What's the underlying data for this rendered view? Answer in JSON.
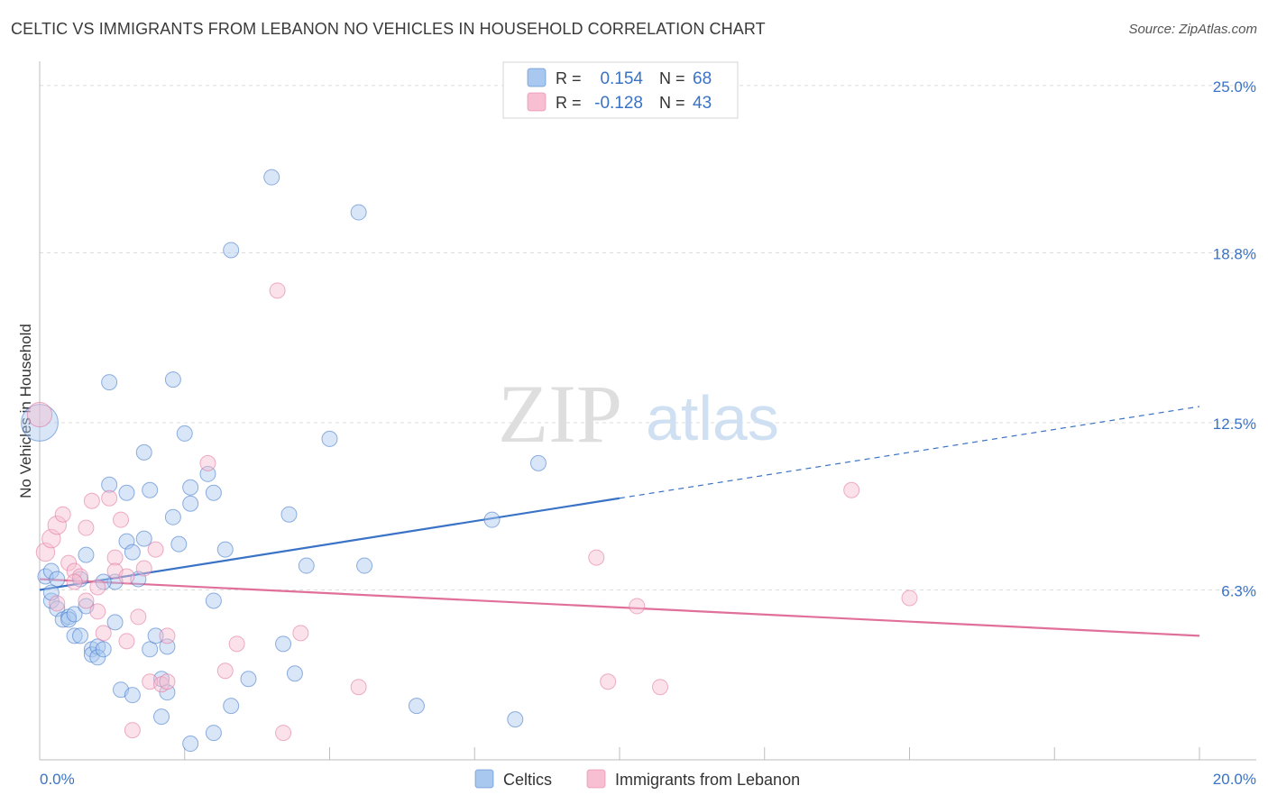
{
  "title": "CELTIC VS IMMIGRANTS FROM LEBANON NO VEHICLES IN HOUSEHOLD CORRELATION CHART",
  "source": "Source: ZipAtlas.com",
  "watermark": {
    "zip": "ZIP",
    "atlas": "atlas"
  },
  "chart_data": {
    "type": "scatter",
    "ylabel": "No Vehicles in Household",
    "xlim": [
      0,
      20
    ],
    "ylim": [
      0,
      25.9
    ],
    "x_tick_labels": [
      "0.0%",
      "20.0%"
    ],
    "y_ticks": [
      6.3,
      12.5,
      18.8,
      25.0
    ],
    "y_tick_labels": [
      "6.3%",
      "12.5%",
      "18.8%",
      "25.0%"
    ],
    "grid": true,
    "legend_top": {
      "rows": [
        {
          "r_label": "R =",
          "r_value": "0.154",
          "n_label": "N =",
          "n_value": "68"
        },
        {
          "r_label": "R =",
          "r_value": "-0.128",
          "n_label": "N =",
          "n_value": "43"
        }
      ]
    },
    "series": [
      {
        "name": "Celtics",
        "color": "#3a73c6",
        "fill": "#a9c8ef",
        "trend": {
          "x0": 0,
          "y0": 6.3,
          "x1": 10,
          "y1": 9.7,
          "dash_to_x": 20,
          "dash_to_y": 13.1
        },
        "points": [
          [
            0.0,
            12.5,
            24
          ],
          [
            0.1,
            6.8,
            10
          ],
          [
            0.2,
            5.9,
            10
          ],
          [
            0.2,
            7.0,
            10
          ],
          [
            0.3,
            5.6,
            10
          ],
          [
            0.4,
            5.2,
            10
          ],
          [
            0.5,
            5.3,
            10
          ],
          [
            0.5,
            5.2,
            10
          ],
          [
            0.6,
            5.4,
            10
          ],
          [
            0.6,
            4.6,
            10
          ],
          [
            0.7,
            4.6,
            10
          ],
          [
            0.7,
            6.7,
            10
          ],
          [
            0.8,
            5.7,
            10
          ],
          [
            0.8,
            7.6,
            10
          ],
          [
            0.9,
            4.1,
            10
          ],
          [
            0.9,
            3.9,
            10
          ],
          [
            1.0,
            4.2,
            10
          ],
          [
            1.0,
            3.8,
            10
          ],
          [
            1.1,
            4.1,
            10
          ],
          [
            1.2,
            10.2,
            10
          ],
          [
            1.2,
            14.0,
            10
          ],
          [
            1.3,
            6.6,
            10
          ],
          [
            1.3,
            5.1,
            10
          ],
          [
            1.4,
            2.6,
            10
          ],
          [
            1.5,
            9.9,
            10
          ],
          [
            1.5,
            8.1,
            10
          ],
          [
            1.6,
            7.7,
            10
          ],
          [
            1.6,
            2.4,
            10
          ],
          [
            1.7,
            6.7,
            10
          ],
          [
            1.8,
            8.2,
            10
          ],
          [
            1.8,
            11.4,
            10
          ],
          [
            1.9,
            4.1,
            10
          ],
          [
            1.9,
            10.0,
            10
          ],
          [
            2.0,
            4.6,
            10
          ],
          [
            2.1,
            3.0,
            10
          ],
          [
            2.1,
            1.6,
            10
          ],
          [
            2.2,
            2.5,
            10
          ],
          [
            2.2,
            4.2,
            10
          ],
          [
            2.3,
            9.0,
            10
          ],
          [
            2.3,
            14.1,
            10
          ],
          [
            2.4,
            8.0,
            10
          ],
          [
            2.5,
            12.1,
            10
          ],
          [
            2.6,
            9.5,
            10
          ],
          [
            2.6,
            10.1,
            10
          ],
          [
            2.6,
            0.6,
            10
          ],
          [
            2.9,
            10.6,
            10
          ],
          [
            3.0,
            1.0,
            10
          ],
          [
            3.0,
            5.9,
            10
          ],
          [
            3.0,
            9.9,
            10
          ],
          [
            3.2,
            7.8,
            10
          ],
          [
            3.3,
            2.0,
            10
          ],
          [
            3.3,
            18.9,
            10
          ],
          [
            3.6,
            3.0,
            10
          ],
          [
            4.0,
            21.6,
            10
          ],
          [
            4.2,
            4.3,
            10
          ],
          [
            4.3,
            9.1,
            10
          ],
          [
            4.4,
            3.2,
            10
          ],
          [
            4.6,
            7.2,
            10
          ],
          [
            5.0,
            11.9,
            10
          ],
          [
            5.5,
            20.3,
            10
          ],
          [
            5.6,
            7.2,
            10
          ],
          [
            6.5,
            2.0,
            10
          ],
          [
            7.8,
            8.9,
            10
          ],
          [
            8.2,
            1.5,
            10
          ],
          [
            8.6,
            11.0,
            10
          ],
          [
            0.3,
            6.7,
            10
          ],
          [
            1.1,
            6.6,
            10
          ],
          [
            0.2,
            6.2,
            10
          ]
        ]
      },
      {
        "name": "Immigrants from Lebanon",
        "color": "#e0709a",
        "fill": "#f7bfd1",
        "trend": {
          "x0": 0,
          "y0": 6.7,
          "x1": 20,
          "y1": 4.6
        },
        "points": [
          [
            0.0,
            12.8,
            16
          ],
          [
            0.1,
            7.7,
            12
          ],
          [
            0.2,
            8.2,
            12
          ],
          [
            0.3,
            8.7,
            12
          ],
          [
            0.3,
            5.8,
            10
          ],
          [
            0.4,
            9.1,
            10
          ],
          [
            0.5,
            7.3,
            10
          ],
          [
            0.6,
            7.0,
            10
          ],
          [
            0.7,
            6.8,
            10
          ],
          [
            0.8,
            5.9,
            10
          ],
          [
            0.8,
            8.6,
            10
          ],
          [
            0.9,
            9.6,
            10
          ],
          [
            1.0,
            5.5,
            10
          ],
          [
            1.1,
            4.7,
            10
          ],
          [
            1.2,
            9.7,
            10
          ],
          [
            1.3,
            7.5,
            10
          ],
          [
            1.3,
            7.0,
            10
          ],
          [
            1.4,
            8.9,
            10
          ],
          [
            1.5,
            6.8,
            10
          ],
          [
            1.5,
            4.4,
            10
          ],
          [
            1.6,
            1.1,
            10
          ],
          [
            1.7,
            5.3,
            10
          ],
          [
            1.8,
            7.1,
            10
          ],
          [
            1.9,
            2.9,
            10
          ],
          [
            2.0,
            7.8,
            10
          ],
          [
            2.1,
            2.8,
            10
          ],
          [
            2.2,
            4.6,
            10
          ],
          [
            2.2,
            2.9,
            10
          ],
          [
            2.9,
            11.0,
            10
          ],
          [
            3.2,
            3.3,
            10
          ],
          [
            3.4,
            4.3,
            10
          ],
          [
            4.1,
            17.4,
            10
          ],
          [
            4.2,
            1.0,
            10
          ],
          [
            4.5,
            4.7,
            10
          ],
          [
            5.5,
            2.7,
            10
          ],
          [
            9.6,
            7.5,
            10
          ],
          [
            9.8,
            2.9,
            10
          ],
          [
            10.3,
            5.7,
            10
          ],
          [
            10.7,
            2.7,
            10
          ],
          [
            14.0,
            10.0,
            10
          ],
          [
            15.0,
            6.0,
            10
          ],
          [
            0.6,
            6.6,
            10
          ],
          [
            1.0,
            6.4,
            10
          ]
        ]
      }
    ]
  }
}
